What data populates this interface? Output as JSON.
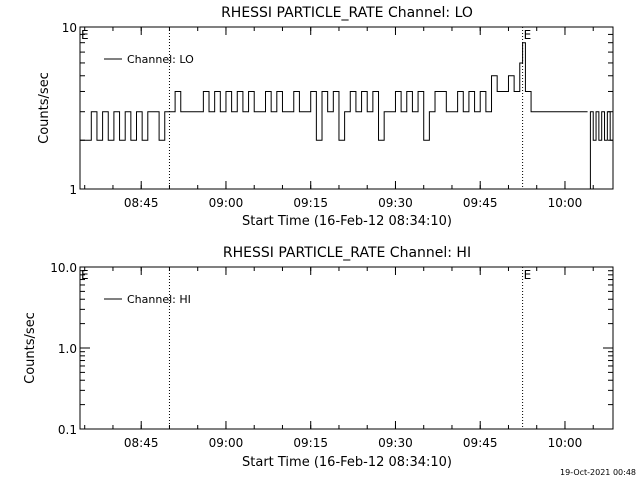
{
  "stamp": "19-Oct-2021 00:48",
  "chart_data": [
    {
      "type": "line",
      "title": "RHESSI PARTICLE_RATE Channel: LO",
      "xlabel": "Start Time (16-Feb-12 08:34:10)",
      "ylabel": "Counts/sec",
      "yscale": "log",
      "ylim": [
        1,
        10
      ],
      "yticks": [
        1,
        10
      ],
      "ytick_labels": [
        "1",
        "10"
      ],
      "xlim": [
        "08:34:10",
        "10:08:30"
      ],
      "xticks": [
        "08:45",
        "09:00",
        "09:15",
        "09:30",
        "09:45",
        "10:00"
      ],
      "legend": {
        "position": "top-left",
        "entries": [
          "Channel: LO"
        ]
      },
      "event_markers": [
        {
          "time": "08:34:10",
          "label": "E"
        },
        {
          "time": "09:52:30",
          "label": "E"
        }
      ],
      "vlines": [
        "08:50:00",
        "09:52:30",
        "10:08:30"
      ],
      "segments": [
        {
          "x": [
            "08:34:10",
            "08:36:10",
            "08:37:10",
            "08:38:10",
            "08:39:10",
            "08:40:10",
            "08:41:10",
            "08:42:10",
            "08:43:10",
            "08:44:10",
            "08:45:10",
            "08:46:10",
            "08:47:10",
            "08:48:10",
            "08:49:10",
            "08:50:00",
            "08:51:00",
            "08:52:00",
            "08:53:00",
            "08:55:00",
            "08:56:00",
            "08:57:00",
            "08:58:00",
            "08:59:00",
            "09:00:00",
            "09:01:00",
            "09:02:00",
            "09:03:00",
            "09:04:00",
            "09:05:00",
            "09:06:00",
            "09:07:00",
            "09:08:00",
            "09:09:00",
            "09:10:00",
            "09:11:00",
            "09:12:00",
            "09:13:00",
            "09:14:00",
            "09:15:00",
            "09:16:00",
            "09:17:00",
            "09:18:00",
            "09:19:00",
            "09:20:00",
            "09:21:00",
            "09:22:00",
            "09:23:00",
            "09:24:00",
            "09:25:00",
            "09:26:00",
            "09:27:00",
            "09:28:00",
            "09:29:00",
            "09:30:00",
            "09:31:00",
            "09:32:00",
            "09:33:00",
            "09:34:00",
            "09:35:00",
            "09:36:00",
            "09:37:00",
            "09:38:00",
            "09:39:00",
            "09:40:00",
            "09:41:00",
            "09:42:00",
            "09:43:00",
            "09:44:00",
            "09:45:00",
            "09:46:00",
            "09:47:00",
            "09:48:00",
            "09:49:00",
            "09:50:00",
            "09:51:00",
            "09:52:00",
            "09:52:30",
            "09:53:00",
            "09:54:00",
            "09:55:00",
            "09:56:00",
            "09:57:00",
            "09:58:00",
            "09:59:00",
            "10:00:00",
            "10:01:00",
            "10:02:00",
            "10:03:00",
            "10:04:00"
          ],
          "y": [
            2,
            3,
            2,
            3,
            2,
            3,
            2,
            3,
            2,
            3,
            2,
            3,
            3,
            2,
            3,
            3,
            4,
            3,
            3,
            3,
            4,
            3,
            4,
            3,
            4,
            3,
            4,
            3,
            4,
            3,
            3,
            4,
            3,
            4,
            3,
            3,
            4,
            3,
            3,
            4,
            2,
            4,
            3,
            4,
            2,
            3,
            4,
            3,
            4,
            3,
            4,
            2,
            3,
            3,
            4,
            3,
            4,
            3,
            4,
            2,
            3,
            4,
            4,
            3,
            3,
            4,
            3,
            4,
            3,
            4,
            3,
            5,
            4,
            4,
            5,
            4,
            6,
            8,
            4,
            3,
            3,
            3,
            3,
            3,
            3,
            3,
            3,
            3,
            3,
            3
          ]
        },
        {
          "x": [
            "10:04:00",
            "10:04:30",
            "10:05:00",
            "10:05:30",
            "10:06:00",
            "10:06:30",
            "10:07:00",
            "10:07:30",
            "10:08:00",
            "10:08:30"
          ],
          "y": [
            1,
            3,
            2,
            3,
            2,
            3,
            2,
            3,
            2,
            3
          ]
        }
      ]
    },
    {
      "type": "line",
      "title": "RHESSI PARTICLE_RATE Channel: HI",
      "xlabel": "Start Time (16-Feb-12 08:34:10)",
      "ylabel": "Counts/sec",
      "yscale": "log",
      "ylim": [
        0.1,
        10
      ],
      "yticks": [
        0.1,
        1,
        10
      ],
      "ytick_labels": [
        "0.1",
        "1.0",
        "10.0"
      ],
      "xlim": [
        "08:34:10",
        "10:08:30"
      ],
      "xticks": [
        "08:45",
        "09:00",
        "09:15",
        "09:30",
        "09:45",
        "10:00"
      ],
      "legend": {
        "position": "top-left",
        "entries": [
          "Channel: HI"
        ]
      },
      "event_markers": [
        {
          "time": "08:34:10",
          "label": "E"
        },
        {
          "time": "09:52:30",
          "label": "E"
        }
      ],
      "vlines": [
        "08:50:00",
        "09:52:30",
        "10:08:30"
      ],
      "segments": []
    }
  ]
}
